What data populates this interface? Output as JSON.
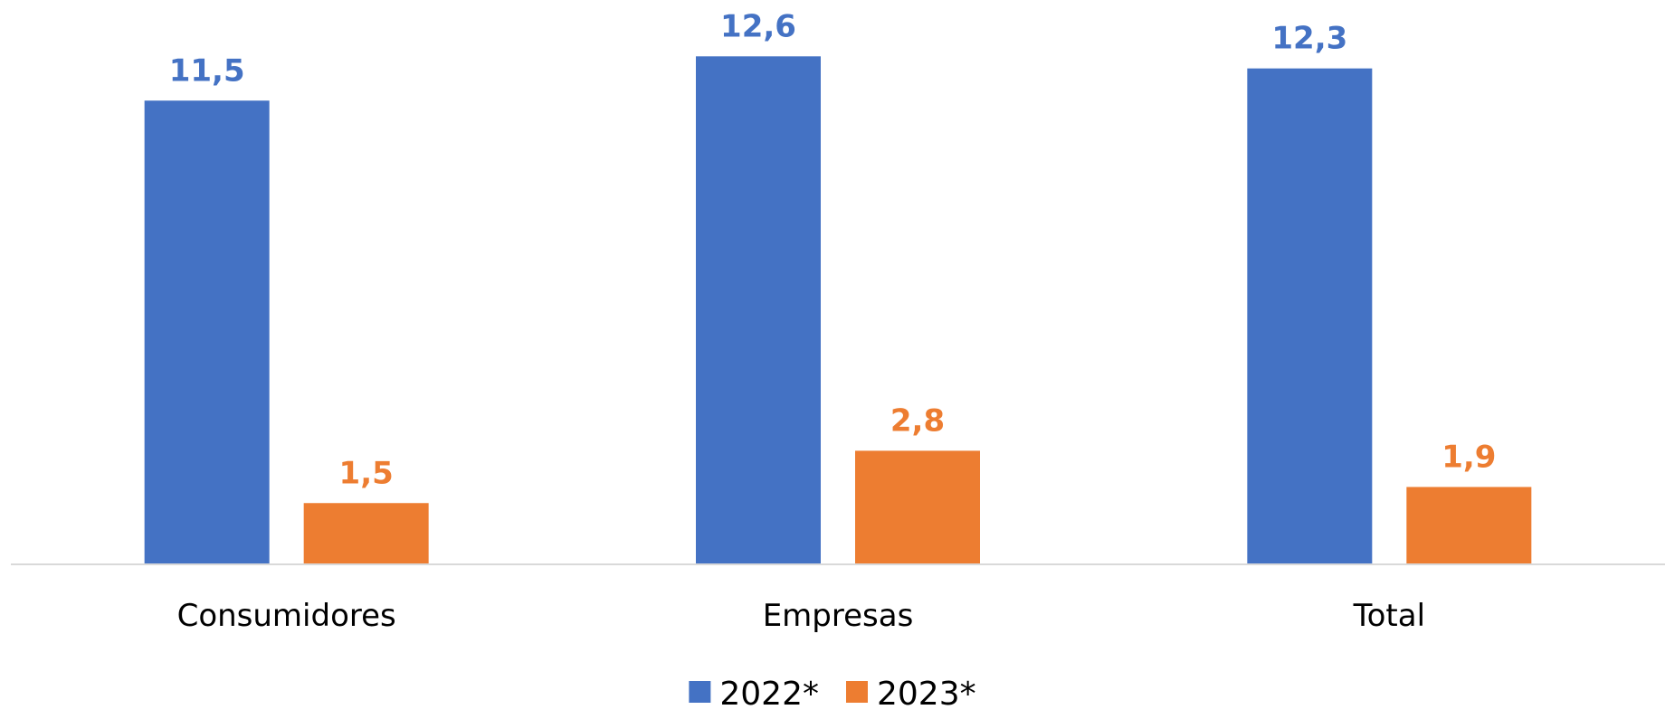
{
  "chart_data": {
    "type": "bar",
    "title": "",
    "xlabel": "",
    "ylabel": "",
    "categories": [
      "Consumidores",
      "Empresas",
      "Total"
    ],
    "series": [
      {
        "name": "2022*",
        "values": [
          11.5,
          12.6,
          12.3
        ],
        "labels": [
          "11,5",
          "12,6",
          "12,3"
        ],
        "color": "#4472C4"
      },
      {
        "name": "2023*",
        "values": [
          1.5,
          2.8,
          1.9
        ],
        "labels": [
          "1,5",
          "2,8",
          "1,9"
        ],
        "color": "#ED7D31"
      }
    ],
    "ylim": [
      0,
      14
    ],
    "grid": false,
    "legend_position": "bottom-center",
    "axis_color": "#D9D9D9"
  }
}
